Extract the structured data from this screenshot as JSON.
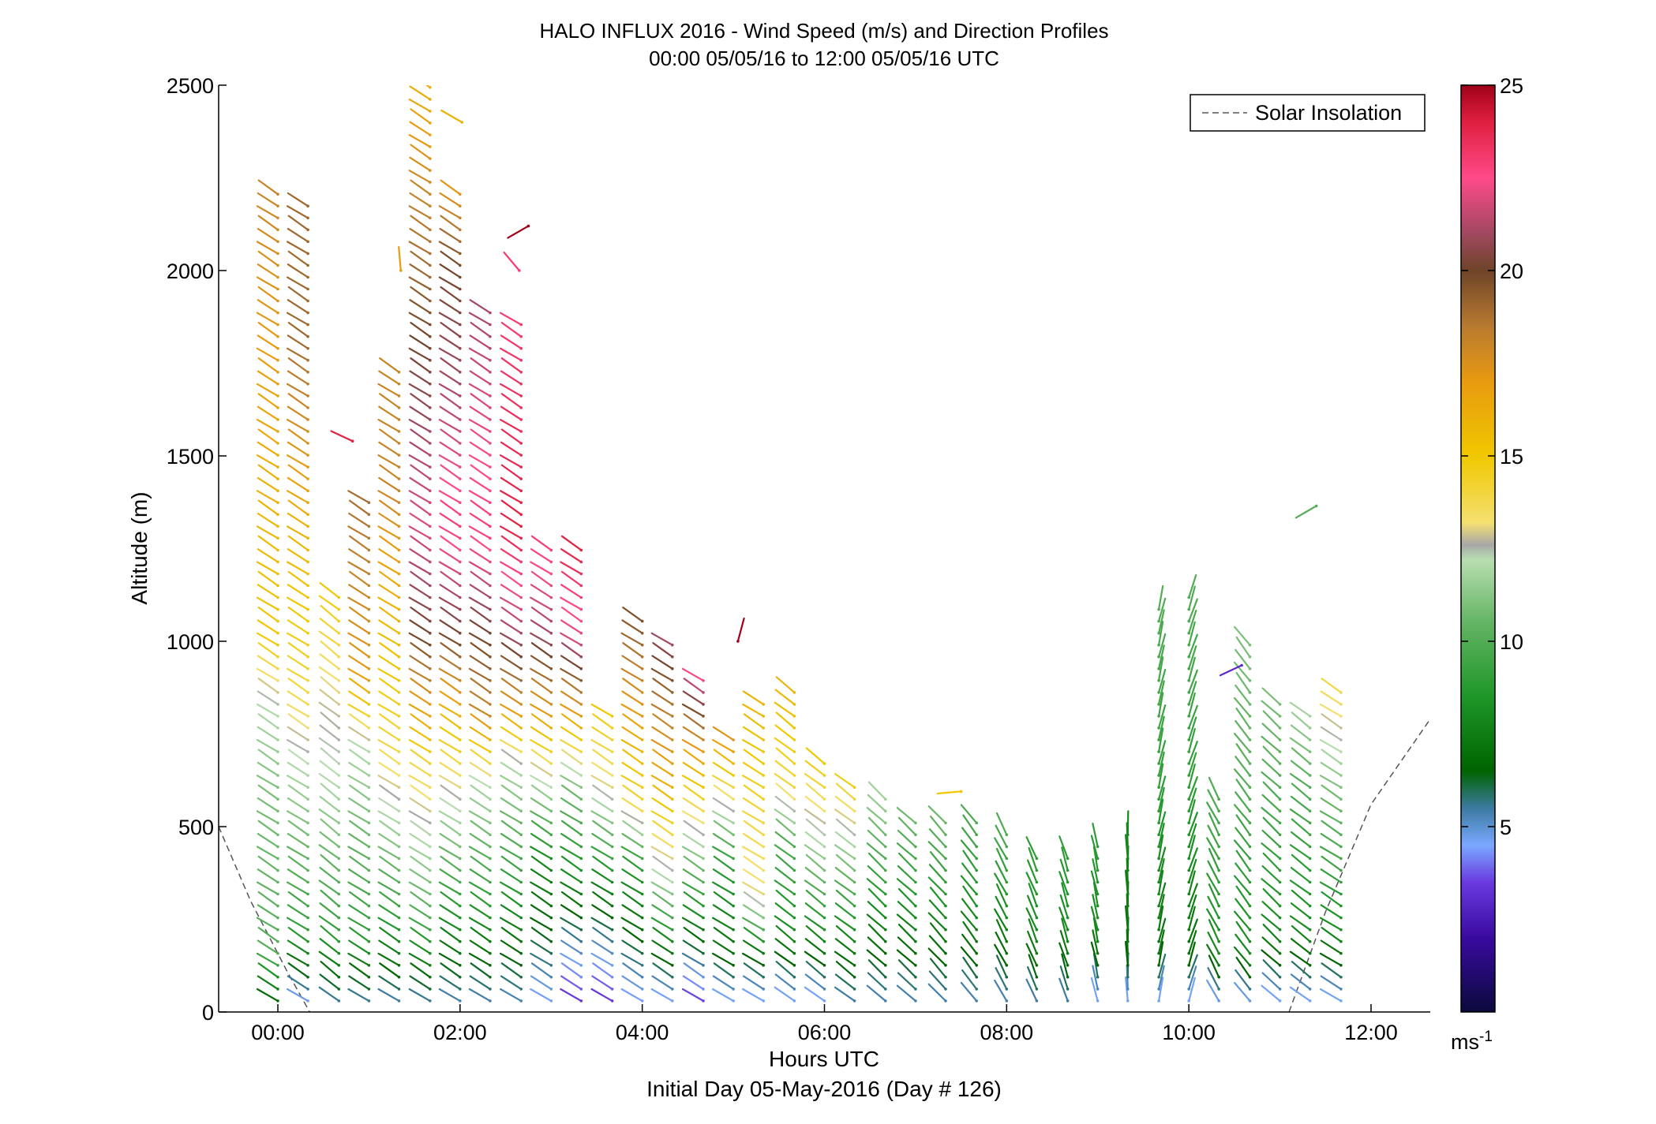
{
  "chart_data": {
    "type": "wind barb profile",
    "title": "HALO INFLUX 2016 - Wind Speed (m/s) and Direction Profiles",
    "subtitle": "00:00 05/05/16 to 12:00 05/05/16  UTC",
    "xlabel": "Hours UTC",
    "xlabel2": "Initial Day 05-May-2016 (Day # 126)",
    "ylabel": "Altitude (m)",
    "xlim": [
      -0.65,
      12.65
    ],
    "ylim": [
      0,
      2500
    ],
    "x_ticks": [
      {
        "value": 0,
        "label": "00:00"
      },
      {
        "value": 2,
        "label": "02:00"
      },
      {
        "value": 4,
        "label": "04:00"
      },
      {
        "value": 6,
        "label": "06:00"
      },
      {
        "value": 8,
        "label": "08:00"
      },
      {
        "value": 10,
        "label": "10:00"
      },
      {
        "value": 12,
        "label": "12:00"
      }
    ],
    "y_ticks": [
      {
        "value": 0,
        "label": "0"
      },
      {
        "value": 500,
        "label": "500"
      },
      {
        "value": 1000,
        "label": "1000"
      },
      {
        "value": 1500,
        "label": "1500"
      },
      {
        "value": 2000,
        "label": "2000"
      },
      {
        "value": 2500,
        "label": "2500"
      }
    ],
    "legend": {
      "label": "Solar Insolation",
      "position": "top-right",
      "style": "dashed",
      "color": "#555555"
    },
    "colorbar": {
      "min": 0,
      "max": 25,
      "ticks": [
        {
          "value": 5,
          "label": "5"
        },
        {
          "value": 10,
          "label": "10"
        },
        {
          "value": 15,
          "label": "15"
        },
        {
          "value": 20,
          "label": "20"
        },
        {
          "value": 25,
          "label": "25"
        }
      ],
      "unit": "ms",
      "unit_exp": "-1",
      "stops": [
        {
          "v": 0,
          "c": "#0a0a3c"
        },
        {
          "v": 2,
          "c": "#3a0aa0"
        },
        {
          "v": 3.5,
          "c": "#6a3ae0"
        },
        {
          "v": 4.5,
          "c": "#7aa8ff"
        },
        {
          "v": 5.5,
          "c": "#3c7aa0"
        },
        {
          "v": 6.5,
          "c": "#006400"
        },
        {
          "v": 8.5,
          "c": "#1e9628"
        },
        {
          "v": 10.5,
          "c": "#64b464"
        },
        {
          "v": 12.2,
          "c": "#b8deb0"
        },
        {
          "v": 12.6,
          "c": "#a8a8a8"
        },
        {
          "v": 13.2,
          "c": "#f4e070"
        },
        {
          "v": 15,
          "c": "#f0c800"
        },
        {
          "v": 17,
          "c": "#e89a10"
        },
        {
          "v": 18.5,
          "c": "#b87a30"
        },
        {
          "v": 20,
          "c": "#6e4428"
        },
        {
          "v": 21,
          "c": "#a04860"
        },
        {
          "v": 22.5,
          "c": "#ff4a8a"
        },
        {
          "v": 24,
          "c": "#e02040"
        },
        {
          "v": 25,
          "c": "#a00018"
        }
      ]
    },
    "solar_insolation": {
      "segments": [
        [
          [
            -0.65,
            500
          ],
          [
            -0.3,
            300
          ],
          [
            0.1,
            110
          ],
          [
            0.35,
            0
          ]
        ],
        [
          [
            11.1,
            0
          ],
          [
            11.5,
            270
          ],
          [
            12.0,
            560
          ],
          [
            12.65,
            790
          ]
        ]
      ]
    },
    "profiles": [
      {
        "t": 0.0,
        "top": 2220,
        "dir": 300,
        "lv": [
          [
            0,
            6
          ],
          [
            150,
            10
          ],
          [
            600,
            11
          ],
          [
            800,
            12
          ],
          [
            1000,
            15
          ],
          [
            1800,
            17
          ],
          [
            2220,
            18
          ]
        ]
      },
      {
        "t": 0.33,
        "top": 2180,
        "dir": 300,
        "lv": [
          [
            0,
            4
          ],
          [
            200,
            9
          ],
          [
            650,
            12
          ],
          [
            850,
            14
          ],
          [
            1300,
            16
          ],
          [
            1800,
            19
          ],
          [
            2180,
            19
          ]
        ]
      },
      {
        "t": 0.67,
        "top": 1130,
        "dir": 305,
        "lv": [
          [
            0,
            5
          ],
          [
            200,
            9
          ],
          [
            600,
            12
          ],
          [
            850,
            13
          ],
          [
            1130,
            15
          ]
        ]
      },
      {
        "t": 1.0,
        "top": 1400,
        "dir": 300,
        "lv": [
          [
            0,
            5
          ],
          [
            200,
            9
          ],
          [
            700,
            12
          ],
          [
            900,
            17
          ],
          [
            1400,
            19
          ]
        ]
      },
      {
        "t": 1.33,
        "top": 1740,
        "dir": 300,
        "lv": [
          [
            0,
            5
          ],
          [
            250,
            9
          ],
          [
            700,
            14
          ],
          [
            1100,
            16
          ],
          [
            1400,
            18
          ],
          [
            1740,
            18
          ]
        ]
      },
      {
        "t": 1.67,
        "top": 2500,
        "dir": 300,
        "lv": [
          [
            0,
            5
          ],
          [
            250,
            10
          ],
          [
            650,
            14
          ],
          [
            1000,
            20
          ],
          [
            1300,
            22
          ],
          [
            1800,
            20
          ],
          [
            2200,
            18
          ],
          [
            2500,
            16
          ]
        ]
      },
      {
        "t": 2.0,
        "top": 2220,
        "dir": 300,
        "lv": [
          [
            0,
            5
          ],
          [
            300,
            9
          ],
          [
            600,
            13
          ],
          [
            800,
            16
          ],
          [
            1000,
            20
          ],
          [
            1300,
            23
          ],
          [
            1700,
            21
          ],
          [
            2000,
            20
          ],
          [
            2220,
            17
          ]
        ]
      },
      {
        "t": 2.33,
        "top": 1900,
        "dir": 300,
        "lv": [
          [
            0,
            5
          ],
          [
            300,
            9
          ],
          [
            600,
            12
          ],
          [
            800,
            18
          ],
          [
            1000,
            20
          ],
          [
            1300,
            23
          ],
          [
            1900,
            21
          ]
        ]
      },
      {
        "t": 2.67,
        "top": 1870,
        "dir": 300,
        "lv": [
          [
            0,
            5
          ],
          [
            350,
            9
          ],
          [
            650,
            12
          ],
          [
            800,
            17
          ],
          [
            1000,
            21
          ],
          [
            1300,
            24
          ],
          [
            1870,
            23
          ]
        ]
      },
      {
        "t": 3.0,
        "top": 1250,
        "dir": 300,
        "lv": [
          [
            0,
            4
          ],
          [
            150,
            6
          ],
          [
            400,
            8
          ],
          [
            600,
            12
          ],
          [
            800,
            17
          ],
          [
            1000,
            21
          ],
          [
            1250,
            23
          ]
        ]
      },
      {
        "t": 3.33,
        "top": 1250,
        "dir": 300,
        "lv": [
          [
            0,
            3
          ],
          [
            150,
            5
          ],
          [
            350,
            8
          ],
          [
            600,
            11
          ],
          [
            800,
            17
          ],
          [
            1000,
            22
          ],
          [
            1250,
            24
          ]
        ]
      },
      {
        "t": 3.67,
        "top": 800,
        "dir": 300,
        "lv": [
          [
            0,
            3
          ],
          [
            150,
            5
          ],
          [
            350,
            8
          ],
          [
            600,
            13
          ],
          [
            800,
            15
          ]
        ]
      },
      {
        "t": 4.0,
        "top": 1080,
        "dir": 300,
        "lv": [
          [
            0,
            4
          ],
          [
            150,
            6
          ],
          [
            400,
            9
          ],
          [
            550,
            14
          ],
          [
            800,
            17
          ],
          [
            1080,
            20
          ]
        ]
      },
      {
        "t": 4.33,
        "top": 990,
        "dir": 300,
        "lv": [
          [
            0,
            4
          ],
          [
            150,
            7
          ],
          [
            350,
            12
          ],
          [
            600,
            16
          ],
          [
            850,
            19
          ],
          [
            990,
            21
          ]
        ]
      },
      {
        "t": 4.67,
        "top": 920,
        "dir": 300,
        "lv": [
          [
            0,
            3
          ],
          [
            150,
            6
          ],
          [
            400,
            11
          ],
          [
            700,
            17
          ],
          [
            920,
            23
          ]
        ]
      },
      {
        "t": 5.0,
        "top": 760,
        "dir": 300,
        "lv": [
          [
            0,
            4
          ],
          [
            150,
            7
          ],
          [
            400,
            9
          ],
          [
            600,
            14
          ],
          [
            760,
            18
          ]
        ]
      },
      {
        "t": 5.33,
        "top": 840,
        "dir": 300,
        "lv": [
          [
            0,
            4
          ],
          [
            150,
            7
          ],
          [
            300,
            13
          ],
          [
            500,
            14
          ],
          [
            840,
            16
          ]
        ]
      },
      {
        "t": 5.67,
        "top": 880,
        "dir": 305,
        "lv": [
          [
            0,
            4
          ],
          [
            200,
            8
          ],
          [
            450,
            10
          ],
          [
            600,
            14
          ],
          [
            880,
            16
          ]
        ]
      },
      {
        "t": 6.0,
        "top": 670,
        "dir": 305,
        "lv": [
          [
            0,
            4
          ],
          [
            200,
            8
          ],
          [
            450,
            12
          ],
          [
            670,
            15
          ]
        ]
      },
      {
        "t": 6.33,
        "top": 630,
        "dir": 305,
        "lv": [
          [
            0,
            5
          ],
          [
            200,
            8
          ],
          [
            450,
            12
          ],
          [
            630,
            15
          ]
        ]
      },
      {
        "t": 6.67,
        "top": 600,
        "dir": 310,
        "lv": [
          [
            0,
            5
          ],
          [
            250,
            8
          ],
          [
            500,
            11
          ],
          [
            600,
            12
          ]
        ]
      },
      {
        "t": 7.0,
        "top": 540,
        "dir": 310,
        "lv": [
          [
            0,
            5
          ],
          [
            250,
            8
          ],
          [
            540,
            11
          ]
        ]
      },
      {
        "t": 7.33,
        "top": 540,
        "dir": 315,
        "lv": [
          [
            0,
            5
          ],
          [
            250,
            8
          ],
          [
            540,
            11
          ]
        ]
      },
      {
        "t": 7.67,
        "top": 540,
        "dir": 320,
        "lv": [
          [
            0,
            5
          ],
          [
            250,
            8
          ],
          [
            540,
            10
          ]
        ]
      },
      {
        "t": 8.0,
        "top": 490,
        "dir": 330,
        "lv": [
          [
            0,
            5
          ],
          [
            250,
            8
          ],
          [
            490,
            10
          ]
        ]
      },
      {
        "t": 8.33,
        "top": 420,
        "dir": 335,
        "lv": [
          [
            0,
            5
          ],
          [
            200,
            8
          ],
          [
            420,
            9
          ]
        ]
      },
      {
        "t": 8.67,
        "top": 420,
        "dir": 340,
        "lv": [
          [
            0,
            5
          ],
          [
            200,
            8
          ],
          [
            420,
            9
          ]
        ]
      },
      {
        "t": 9.0,
        "top": 470,
        "dir": 345,
        "lv": [
          [
            0,
            4
          ],
          [
            200,
            8
          ],
          [
            470,
            9
          ]
        ]
      },
      {
        "t": 9.33,
        "top": 480,
        "dir": 355,
        "lv": [
          [
            0,
            4
          ],
          [
            150,
            7
          ],
          [
            480,
            8
          ]
        ]
      },
      {
        "t": 9.67,
        "top": 1090,
        "dir": 10,
        "lv": [
          [
            0,
            4
          ],
          [
            150,
            7
          ],
          [
            600,
            9
          ],
          [
            1090,
            10
          ]
        ]
      },
      {
        "t": 10.0,
        "top": 1130,
        "dir": 15,
        "lv": [
          [
            0,
            4
          ],
          [
            150,
            7
          ],
          [
            600,
            9
          ],
          [
            1130,
            10
          ]
        ]
      },
      {
        "t": 10.33,
        "top": 600,
        "dir": 330,
        "lv": [
          [
            0,
            4
          ],
          [
            150,
            8
          ],
          [
            600,
            10
          ]
        ]
      },
      {
        "t": 10.67,
        "top": 1000,
        "dir": 320,
        "lv": [
          [
            0,
            4
          ],
          [
            150,
            8
          ],
          [
            600,
            10
          ],
          [
            1000,
            11
          ]
        ]
      },
      {
        "t": 11.0,
        "top": 860,
        "dir": 310,
        "lv": [
          [
            0,
            4
          ],
          [
            200,
            8
          ],
          [
            600,
            10
          ],
          [
            860,
            11
          ]
        ]
      },
      {
        "t": 11.33,
        "top": 820,
        "dir": 305,
        "lv": [
          [
            0,
            4
          ],
          [
            200,
            8
          ],
          [
            600,
            10
          ],
          [
            820,
            12
          ]
        ]
      },
      {
        "t": 11.67,
        "top": 870,
        "dir": 300,
        "lv": [
          [
            0,
            4
          ],
          [
            200,
            8
          ],
          [
            600,
            11
          ],
          [
            870,
            14
          ]
        ]
      }
    ],
    "isolated_barbs": [
      {
        "t": 0.82,
        "alt": 1540,
        "dir": 295,
        "speed": 24
      },
      {
        "t": 1.35,
        "alt": 2000,
        "dir": 355,
        "speed": 17
      },
      {
        "t": 2.02,
        "alt": 2400,
        "dir": 300,
        "speed": 16
      },
      {
        "t": 2.75,
        "alt": 2120,
        "dir": 240,
        "speed": 25
      },
      {
        "t": 2.65,
        "alt": 2000,
        "dir": 320,
        "speed": 23
      },
      {
        "t": 5.05,
        "alt": 1000,
        "dir": 15,
        "speed": 25
      },
      {
        "t": 7.5,
        "alt": 595,
        "dir": 265,
        "speed": 15
      },
      {
        "t": 10.58,
        "alt": 935,
        "dir": 245,
        "speed": 3
      },
      {
        "t": 11.4,
        "alt": 1365,
        "dir": 240,
        "speed": 10
      }
    ]
  }
}
